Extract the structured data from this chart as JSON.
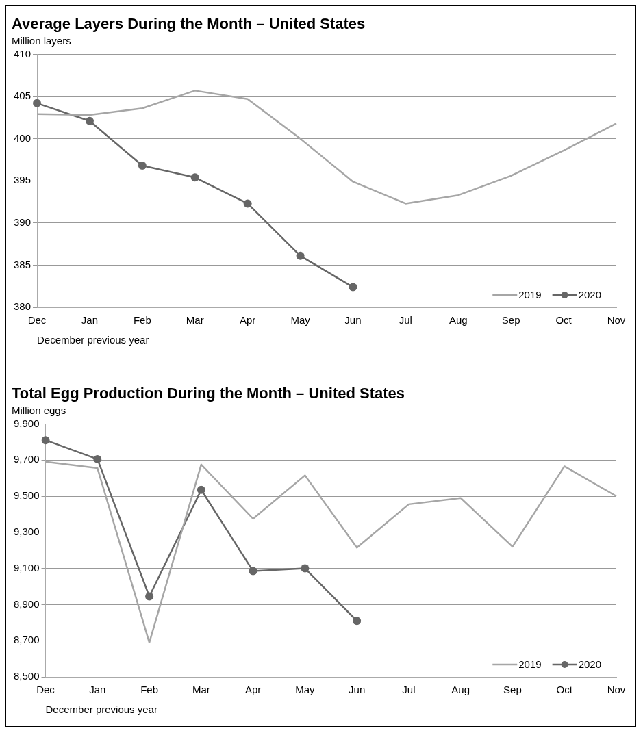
{
  "chart_data": [
    {
      "type": "line",
      "title": "Average Layers During the Month – United States",
      "ylabel": "Million layers",
      "xlabel": "December previous year",
      "categories": [
        "Dec",
        "Jan",
        "Feb",
        "Mar",
        "Apr",
        "May",
        "Jun",
        "Jul",
        "Aug",
        "Sep",
        "Oct",
        "Nov"
      ],
      "series": [
        {
          "name": "2019",
          "color": "#a6a6a6",
          "marker": "none",
          "values": [
            402.9,
            402.8,
            403.6,
            405.7,
            404.7,
            400.0,
            394.9,
            392.3,
            393.3,
            395.6,
            398.6,
            401.8
          ]
        },
        {
          "name": "2020",
          "color": "#666666",
          "marker": "circle",
          "values": [
            404.2,
            402.1,
            396.8,
            395.4,
            392.3,
            386.1,
            382.4,
            null,
            null,
            null,
            null,
            null
          ]
        }
      ],
      "ylim": [
        380,
        410
      ],
      "yticks": [
        380,
        385,
        390,
        395,
        400,
        405,
        410
      ],
      "grid": "y",
      "legend": "bottom right"
    },
    {
      "type": "line",
      "title": "Total Egg Production During the Month – United States",
      "ylabel": "Million eggs",
      "xlabel": "December previous year",
      "categories": [
        "Dec",
        "Jan",
        "Feb",
        "Mar",
        "Apr",
        "May",
        "Jun",
        "Jul",
        "Aug",
        "Sep",
        "Oct",
        "Nov"
      ],
      "series": [
        {
          "name": "2019",
          "color": "#a6a6a6",
          "marker": "none",
          "values": [
            9690,
            9655,
            8690,
            9675,
            9375,
            9615,
            9215,
            9455,
            9490,
            9220,
            9665,
            9500
          ]
        },
        {
          "name": "2020",
          "color": "#666666",
          "marker": "circle",
          "values": [
            9810,
            9705,
            8945,
            9535,
            9085,
            9100,
            8810,
            null,
            null,
            null,
            null,
            null
          ]
        }
      ],
      "ylim": [
        8500,
        9900
      ],
      "yticks": [
        {
          "value": 8500,
          "label": "8,500"
        },
        {
          "value": 8700,
          "label": "8,700"
        },
        {
          "value": 8900,
          "label": "8,900"
        },
        {
          "value": 9100,
          "label": "9,100"
        },
        {
          "value": 9300,
          "label": "9,300"
        },
        {
          "value": 9500,
          "label": "9,500"
        },
        {
          "value": 9700,
          "label": "9,700"
        },
        {
          "value": 9900,
          "label": "9,900"
        }
      ],
      "grid": "y",
      "legend": "bottom right"
    }
  ]
}
